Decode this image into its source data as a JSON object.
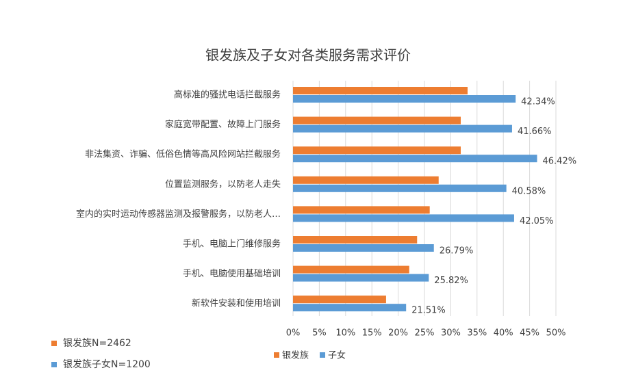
{
  "chart_data": {
    "type": "hbar",
    "title": "银发族及子女对各类服务需求评价",
    "categories": [
      "高标准的骚扰电话拦截服务",
      "家庭宽带配置、故障上门服务",
      "非法集资、诈骗、低俗色情等高风险网站拦截服务",
      "位置监测服务，以防老人走失",
      "室内的实时运动传感器监测及报警服务，以防老人…",
      "手机、电脑上门维修服务",
      "手机、电脑使用基础培训",
      "新软件安装和使用培训"
    ],
    "series": [
      {
        "name": "银发族",
        "color": "#ed7d31",
        "values": [
          33.2,
          31.9,
          31.9,
          27.7,
          26.0,
          23.6,
          22.1,
          17.7
        ]
      },
      {
        "name": "子女",
        "color": "#5b9bd5",
        "values": [
          42.34,
          41.66,
          46.42,
          40.58,
          42.05,
          26.79,
          25.82,
          21.51
        ],
        "value_labels": [
          "42.34%",
          "41.66%",
          "46.42%",
          "40.58%",
          "42.05%",
          "26.79%",
          "25.82%",
          "21.51%"
        ]
      }
    ],
    "xlim": [
      0,
      50
    ],
    "xticks": [
      {
        "value": 0,
        "label": "0%"
      },
      {
        "value": 5,
        "label": "5%"
      },
      {
        "value": 10,
        "label": "10%"
      },
      {
        "value": 15,
        "label": "15%"
      },
      {
        "value": 20,
        "label": "20%"
      },
      {
        "value": 25,
        "label": "25%"
      },
      {
        "value": 30,
        "label": "30%"
      },
      {
        "value": 35,
        "label": "35%"
      },
      {
        "value": 40,
        "label": "40%"
      },
      {
        "value": 45,
        "label": "45%"
      },
      {
        "value": 50,
        "label": "50%"
      }
    ],
    "grid": true,
    "notes": [
      {
        "text": "银发族N=2462",
        "color": "#ed7d31"
      },
      {
        "text": "银发族子女N=1200",
        "color": "#5b9bd5"
      }
    ]
  }
}
